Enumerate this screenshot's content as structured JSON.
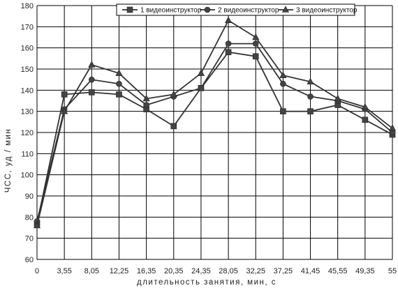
{
  "chart_data": {
    "type": "line",
    "categories": [
      "0",
      "3,55",
      "8,05",
      "12,25",
      "16,35",
      "20,35",
      "24,35",
      "28,05",
      "32,25",
      "37,25",
      "41,45",
      "45,55",
      "49,35",
      "55"
    ],
    "series": [
      {
        "name": "1 видеоинструктор",
        "marker": "square",
        "values": [
          77,
          138,
          139,
          138,
          131,
          123,
          141,
          158,
          156,
          130,
          130,
          133,
          126,
          119
        ]
      },
      {
        "name": "2 видеоинструктор",
        "marker": "circle",
        "values": [
          78,
          131,
          145,
          143,
          133,
          137,
          141,
          162,
          162,
          143,
          137,
          135,
          131,
          120
        ]
      },
      {
        "name": "3 видеоинструктор",
        "marker": "triangle",
        "values": [
          76,
          130,
          152,
          148,
          136,
          138,
          148,
          173,
          165,
          147,
          144,
          136,
          132,
          122
        ]
      }
    ],
    "title": "",
    "xlabel": "длительность занятия, мин, с",
    "ylabel": "ЧСС, уд / мин",
    "ylim": [
      60,
      180
    ],
    "yticks": [
      60,
      70,
      80,
      90,
      100,
      110,
      120,
      130,
      140,
      150,
      160,
      170,
      180
    ],
    "grid": true,
    "legend": "top-right"
  }
}
